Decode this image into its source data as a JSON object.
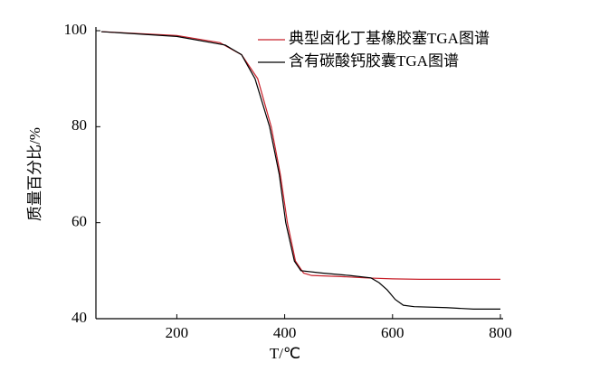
{
  "chart_data": {
    "type": "line",
    "xlabel": "T/℃",
    "ylabel": "质量百分比/%",
    "xlim": [
      50,
      800
    ],
    "ylim": [
      40,
      100
    ],
    "xticks": [
      200,
      400,
      600,
      800
    ],
    "yticks": [
      40,
      60,
      80,
      100
    ],
    "legend": "upper right",
    "grid": false,
    "series": [
      {
        "name": "典型卤化丁基橡胶塞TGA图谱",
        "color": "#c8202a",
        "x": [
          60,
          200,
          280,
          320,
          350,
          375,
          392,
          405,
          420,
          435,
          450,
          500,
          550,
          600,
          650,
          800
        ],
        "values": [
          99.8,
          99,
          97.5,
          95,
          90,
          80,
          70,
          60,
          52,
          49.5,
          49,
          48.8,
          48.5,
          48.3,
          48.2,
          48.2
        ]
      },
      {
        "name": "含有碳酸钙胶囊TGA图谱",
        "color": "#000000",
        "x": [
          60,
          200,
          290,
          320,
          345,
          372,
          390,
          402,
          418,
          430,
          470,
          520,
          560,
          575,
          590,
          605,
          620,
          640,
          700,
          750,
          800
        ],
        "values": [
          99.8,
          98.8,
          97,
          95,
          90,
          80,
          70,
          60,
          52,
          50,
          49.5,
          49,
          48.5,
          47.5,
          46,
          44,
          42.8,
          42.5,
          42.3,
          42,
          42
        ]
      }
    ]
  }
}
